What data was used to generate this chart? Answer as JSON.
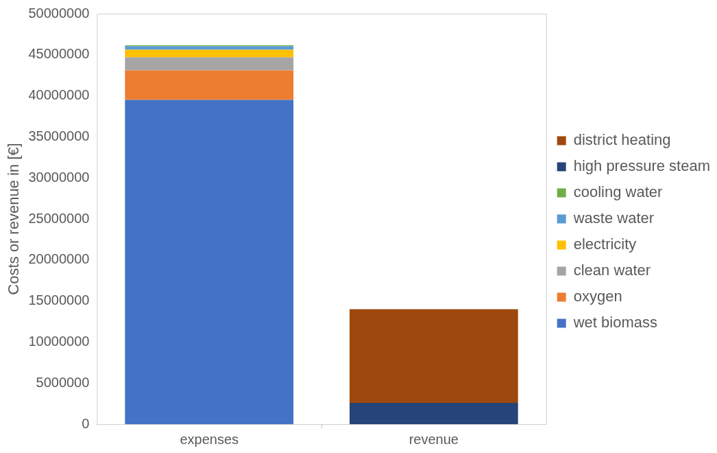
{
  "chart_data": {
    "type": "bar",
    "stacked": true,
    "ylabel": "Costs or revenue in [€]",
    "categories": [
      "expenses",
      "revenue"
    ],
    "series": [
      {
        "name": "wet biomass",
        "color": "#4472c4",
        "values": [
          39500000,
          null
        ]
      },
      {
        "name": "oxygen",
        "color": "#ed7d31",
        "values": [
          3600000,
          null
        ]
      },
      {
        "name": "clean water",
        "color": "#a5a5a5",
        "values": [
          1600000,
          null
        ]
      },
      {
        "name": "electricity",
        "color": "#ffc000",
        "values": [
          900000,
          null
        ]
      },
      {
        "name": "waste water",
        "color": "#5b9bd5",
        "values": [
          450000,
          null
        ]
      },
      {
        "name": "cooling water",
        "color": "#70ad47",
        "values": [
          100000,
          null
        ]
      },
      {
        "name": "high pressure steam",
        "color": "#264478",
        "values": [
          null,
          2600000
        ]
      },
      {
        "name": "district heating",
        "color": "#9e480e",
        "values": [
          null,
          11400000
        ]
      }
    ],
    "ylim": [
      0,
      50000000
    ],
    "yticks": [
      0,
      5000000,
      10000000,
      15000000,
      20000000,
      25000000,
      30000000,
      35000000,
      40000000,
      45000000,
      50000000
    ],
    "grid": false,
    "legend": "right"
  }
}
